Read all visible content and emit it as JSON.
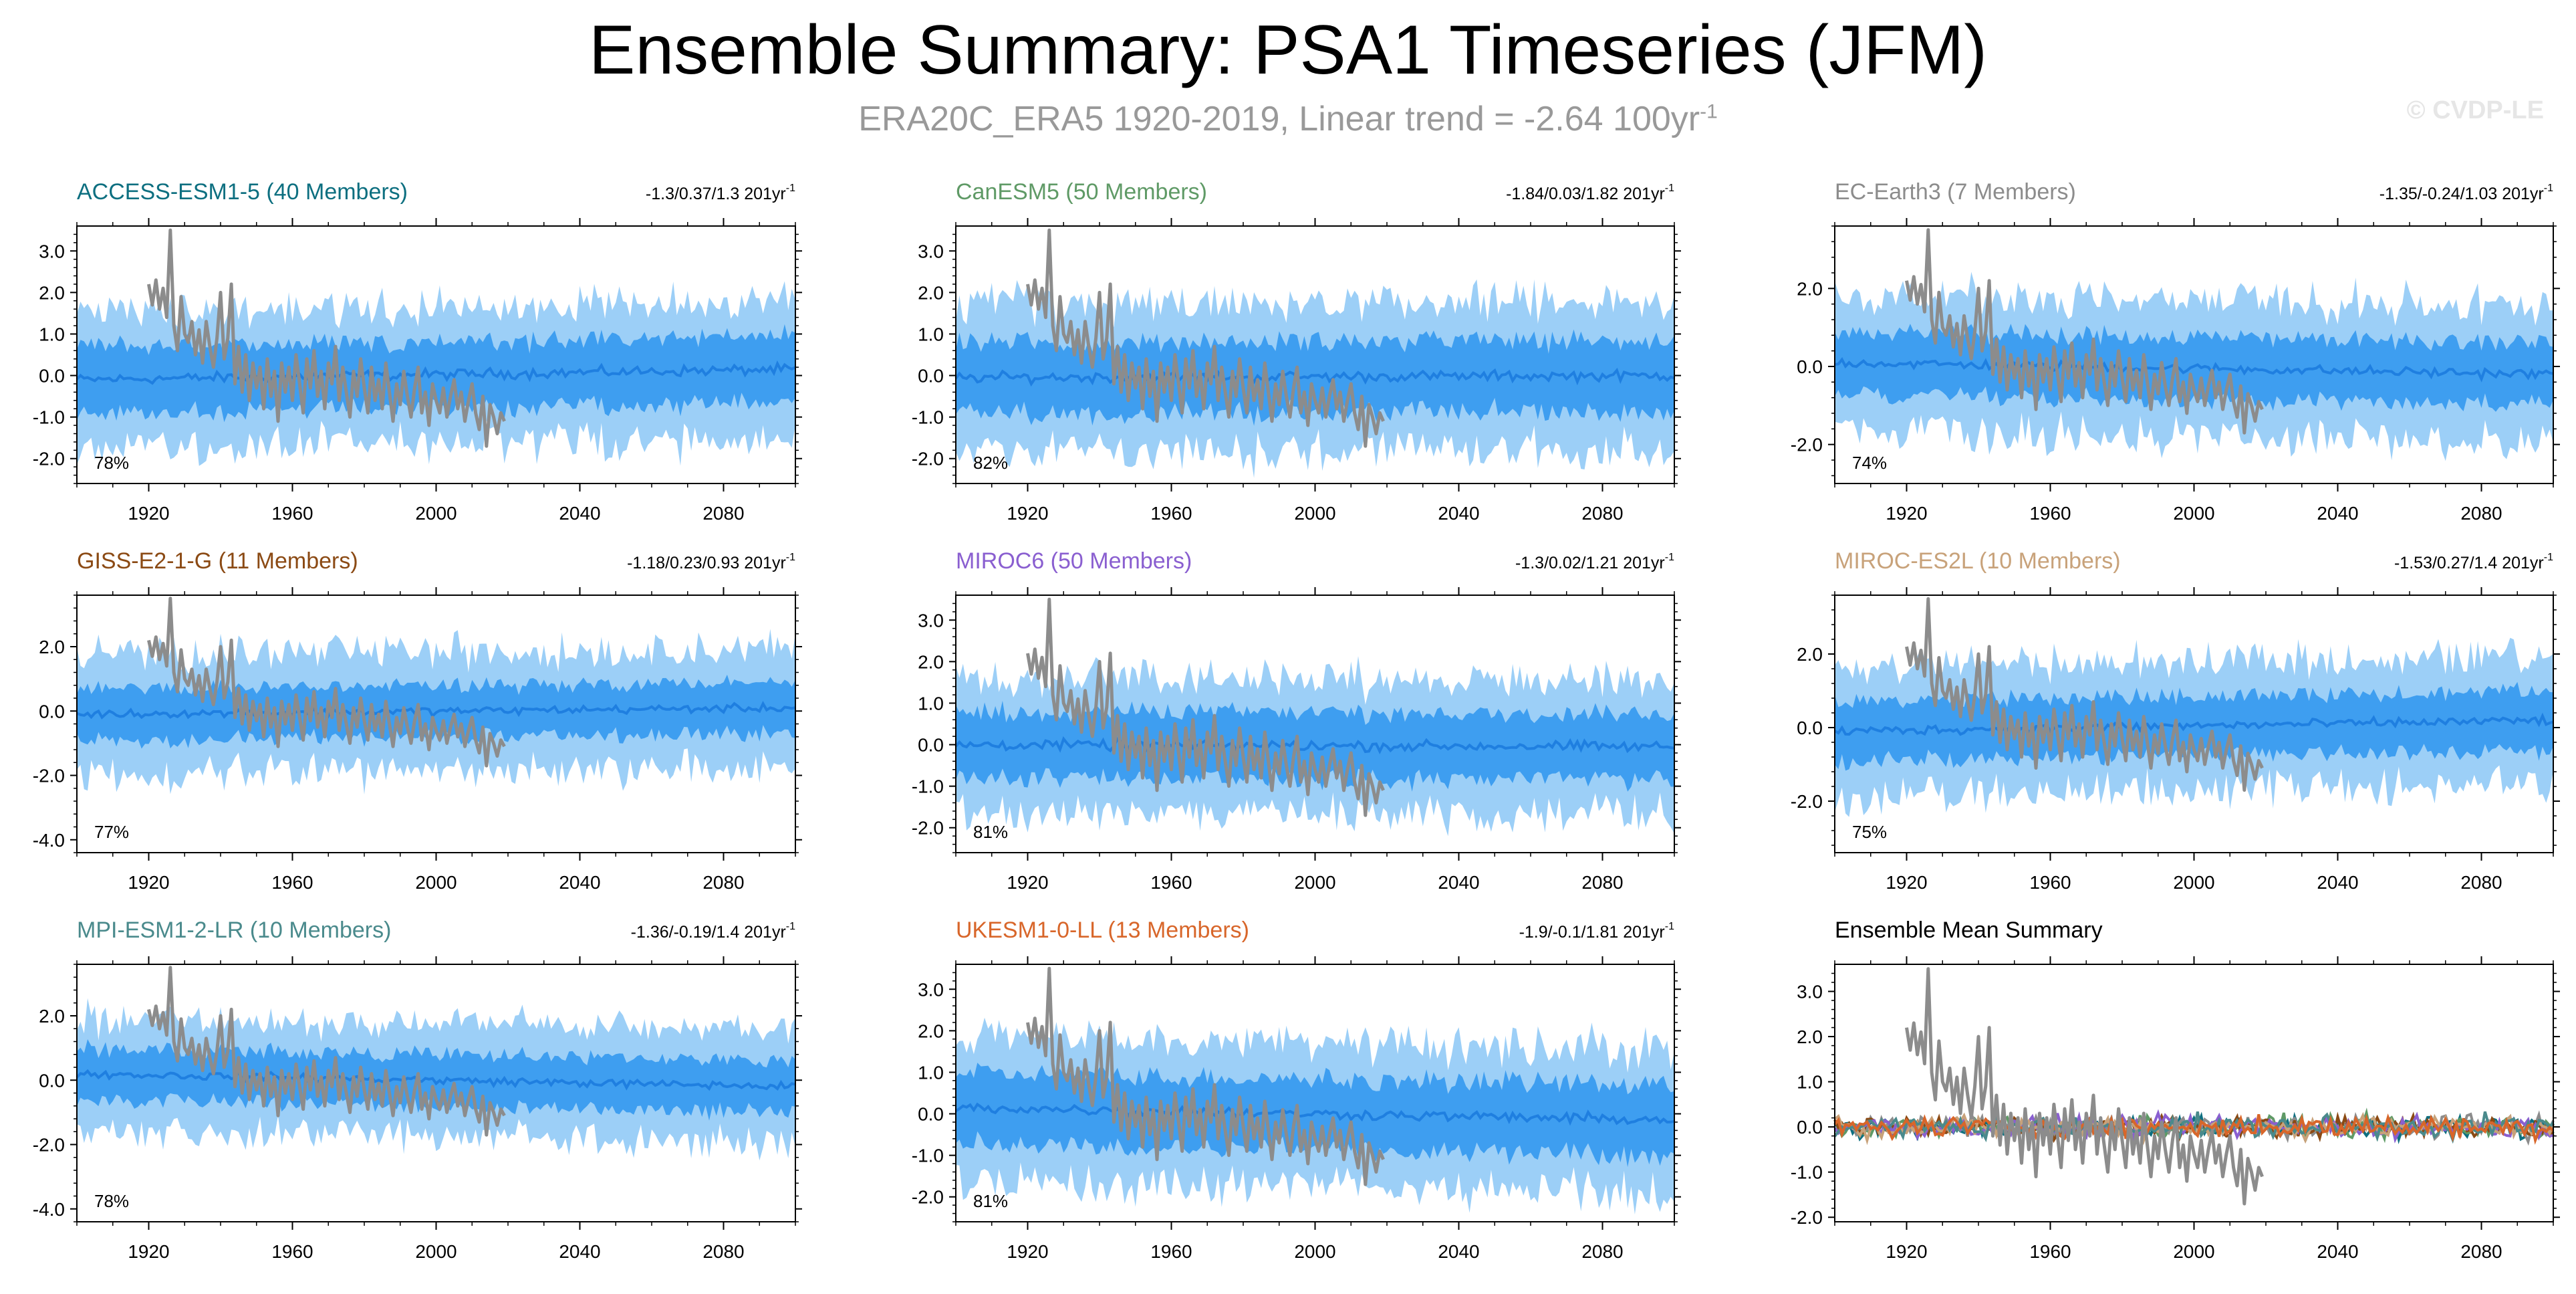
{
  "figure": {
    "title": "Ensemble Summary: PSA1 Timeseries (JFM)",
    "subtitle_main": "ERA20C_ERA5 1920-2019, Linear trend = -2.64 100yr",
    "subtitle_exp": "-1",
    "credit": "© CVDP-LE",
    "trend_unit": "201yr",
    "trend_exp": "-1",
    "obs_color": "#8c8c8c",
    "spread_outer_color": "#9ccff7",
    "spread_inner_color": "#3e9ef0",
    "ensmean_color": "#1f7fe0"
  },
  "chart_data": [
    {
      "type": "area",
      "model": "ACCESS-ESM1-5 (40 Members)",
      "name_color": "#0d6f80",
      "trend_range": "-1.3/0.37/1.3",
      "rank_percent": "78%",
      "x_range": [
        1900,
        2100
      ],
      "ylim": [
        -2.6,
        3.6
      ],
      "y_ticks": [
        "3.0",
        "2.0",
        "1.0",
        "0.0",
        "-1.0",
        "-2.0"
      ],
      "x_ticks": [
        "1920",
        "1960",
        "2000",
        "2040",
        "2080"
      ],
      "ensemble_mean_trend": [
        [
          1900,
          -0.1
        ],
        [
          2100,
          0.15
        ]
      ],
      "spread_10_90": 0.8,
      "spread_min_max": 1.6
    },
    {
      "type": "area",
      "model": "CanESM5 (50 Members)",
      "name_color": "#5f9a66",
      "trend_range": "-1.84/0.03/1.82",
      "rank_percent": "82%",
      "x_range": [
        1900,
        2100
      ],
      "ylim": [
        -2.6,
        3.6
      ],
      "y_ticks": [
        "3.0",
        "2.0",
        "1.0",
        "0.0",
        "-1.0",
        "-2.0"
      ],
      "x_ticks": [
        "1920",
        "1960",
        "2000",
        "2040",
        "2080"
      ],
      "ensemble_mean_trend": [
        [
          1900,
          -0.05
        ],
        [
          2100,
          0.0
        ]
      ],
      "spread_10_90": 0.85,
      "spread_min_max": 1.7
    },
    {
      "type": "area",
      "model": "EC-Earth3 (7 Members)",
      "name_color": "#8c8c8c",
      "trend_range": "-1.35/-0.24/1.03",
      "rank_percent": "74%",
      "x_range": [
        1900,
        2100
      ],
      "ylim": [
        -3.0,
        3.6
      ],
      "y_ticks": [
        "2.0",
        "0.0",
        "-2.0"
      ],
      "x_ticks": [
        "1920",
        "1960",
        "2000",
        "2040",
        "2080"
      ],
      "ensemble_mean_trend": [
        [
          1900,
          0.1
        ],
        [
          2100,
          -0.2
        ]
      ],
      "spread_10_90": 0.8,
      "spread_min_max": 1.7
    },
    {
      "type": "area",
      "model": "GISS-E2-1-G (11 Members)",
      "name_color": "#8b4a14",
      "trend_range": "-1.18/0.23/0.93",
      "rank_percent": "77%",
      "x_range": [
        1900,
        2100
      ],
      "ylim": [
        -4.4,
        3.6
      ],
      "y_ticks": [
        "2.0",
        "0.0",
        "-2.0",
        "-4.0"
      ],
      "x_ticks": [
        "1920",
        "1960",
        "2000",
        "2040",
        "2080"
      ],
      "ensemble_mean_trend": [
        [
          1900,
          -0.1
        ],
        [
          2100,
          0.1
        ]
      ],
      "spread_10_90": 0.8,
      "spread_min_max": 1.8
    },
    {
      "type": "area",
      "model": "MIROC6 (50 Members)",
      "name_color": "#8a5fd0",
      "trend_range": "-1.3/0.02/1.21",
      "rank_percent": "81%",
      "x_range": [
        1900,
        2100
      ],
      "ylim": [
        -2.6,
        3.6
      ],
      "y_ticks": [
        "3.0",
        "2.0",
        "1.0",
        "0.0",
        "-1.0",
        "-2.0"
      ],
      "x_ticks": [
        "1920",
        "1960",
        "2000",
        "2040",
        "2080"
      ],
      "ensemble_mean_trend": [
        [
          1900,
          0.0
        ],
        [
          2100,
          -0.05
        ]
      ],
      "spread_10_90": 0.8,
      "spread_min_max": 1.6
    },
    {
      "type": "area",
      "model": "MIROC-ES2L (10 Members)",
      "name_color": "#c8a27a",
      "trend_range": "-1.53/0.27/1.4",
      "rank_percent": "75%",
      "x_range": [
        1900,
        2100
      ],
      "ylim": [
        -3.4,
        3.6
      ],
      "y_ticks": [
        "2.0",
        "0.0",
        "-2.0"
      ],
      "x_ticks": [
        "1920",
        "1960",
        "2000",
        "2040",
        "2080"
      ],
      "ensemble_mean_trend": [
        [
          1900,
          -0.1
        ],
        [
          2100,
          0.2
        ]
      ],
      "spread_10_90": 0.8,
      "spread_min_max": 1.7
    },
    {
      "type": "area",
      "model": "MPI-ESM1-2-LR (10 Members)",
      "name_color": "#4a8a8c",
      "trend_range": "-1.36/-0.19/1.4",
      "rank_percent": "78%",
      "x_range": [
        1900,
        2100
      ],
      "ylim": [
        -4.4,
        3.6
      ],
      "y_ticks": [
        "2.0",
        "0.0",
        "-2.0",
        "-4.0"
      ],
      "x_ticks": [
        "1920",
        "1960",
        "2000",
        "2040",
        "2080"
      ],
      "ensemble_mean_trend": [
        [
          1900,
          0.2
        ],
        [
          2100,
          -0.2
        ]
      ],
      "spread_10_90": 0.8,
      "spread_min_max": 1.7
    },
    {
      "type": "area",
      "model": "UKESM1-0-LL (13 Members)",
      "name_color": "#d8662a",
      "trend_range": "-1.9/-0.1/1.81",
      "rank_percent": "81%",
      "x_range": [
        1900,
        2100
      ],
      "ylim": [
        -2.6,
        3.6
      ],
      "y_ticks": [
        "3.0",
        "2.0",
        "1.0",
        "0.0",
        "-1.0",
        "-2.0"
      ],
      "x_ticks": [
        "1920",
        "1960",
        "2000",
        "2040",
        "2080"
      ],
      "ensemble_mean_trend": [
        [
          1900,
          0.15
        ],
        [
          2100,
          -0.15
        ]
      ],
      "spread_10_90": 0.85,
      "spread_min_max": 1.7
    },
    {
      "type": "line",
      "model": "Ensemble Mean Summary",
      "name_color": "#000000",
      "trend_range": "",
      "rank_percent": "",
      "x_range": [
        1900,
        2100
      ],
      "ylim": [
        -2.1,
        3.6
      ],
      "y_ticks": [
        "3.0",
        "2.0",
        "1.0",
        "0.0",
        "-1.0",
        "-2.0"
      ],
      "x_ticks": [
        "1920",
        "1960",
        "2000",
        "2040",
        "2080"
      ],
      "series": [
        {
          "name": "ACCESS-ESM1-5",
          "color": "#0d6f80"
        },
        {
          "name": "CanESM5",
          "color": "#5f9a66"
        },
        {
          "name": "EC-Earth3",
          "color": "#8c8c8c"
        },
        {
          "name": "GISS-E2-1-G",
          "color": "#8b4a14"
        },
        {
          "name": "MIROC6",
          "color": "#8a5fd0"
        },
        {
          "name": "MIROC-ES2L",
          "color": "#c8a27a"
        },
        {
          "name": "MPI-ESM1-2-LR",
          "color": "#4a8a8c"
        },
        {
          "name": "UKESM1-0-LL",
          "color": "#d8662a"
        }
      ]
    }
  ],
  "observations": {
    "name": "ERA20C_ERA5",
    "years": [
      1920,
      2019
    ],
    "key_points": [
      [
        1920,
        2.2
      ],
      [
        1921,
        1.7
      ],
      [
        1922,
        2.3
      ],
      [
        1923,
        1.6
      ],
      [
        1924,
        2.1
      ],
      [
        1925,
        1.4
      ],
      [
        1926,
        3.5
      ],
      [
        1927,
        1.2
      ],
      [
        1928,
        0.6
      ],
      [
        1929,
        1.9
      ],
      [
        1930,
        1.0
      ],
      [
        1931,
        0.8
      ],
      [
        1932,
        1.3
      ],
      [
        1933,
        0.5
      ],
      [
        1934,
        1.1
      ],
      [
        1935,
        0.3
      ],
      [
        1936,
        1.3
      ],
      [
        1937,
        0.7
      ],
      [
        1938,
        0.2
      ],
      [
        1939,
        0.9
      ],
      [
        1940,
        2.0
      ],
      [
        1941,
        0.4
      ],
      [
        1942,
        0.9
      ],
      [
        1943,
        2.2
      ],
      [
        1944,
        -0.2
      ],
      [
        1945,
        0.7
      ],
      [
        1946,
        -0.4
      ],
      [
        1947,
        0.5
      ],
      [
        1948,
        -0.6
      ],
      [
        1949,
        0.3
      ],
      [
        1950,
        -0.3
      ],
      [
        1951,
        0.2
      ],
      [
        1952,
        -0.8
      ],
      [
        1953,
        0.4
      ],
      [
        1954,
        -0.5
      ],
      [
        1955,
        0.1
      ],
      [
        1956,
        -1.1
      ],
      [
        1957,
        0.3
      ],
      [
        1958,
        -0.4
      ],
      [
        1959,
        0.2
      ],
      [
        1960,
        -0.6
      ],
      [
        1961,
        0.5
      ],
      [
        1962,
        -0.2
      ],
      [
        1963,
        -0.9
      ],
      [
        1964,
        0.4
      ],
      [
        1965,
        -0.3
      ],
      [
        1966,
        0.6
      ],
      [
        1967,
        -0.5
      ],
      [
        1968,
        0.1
      ],
      [
        1969,
        -0.8
      ],
      [
        1970,
        0.3
      ],
      [
        1971,
        -0.2
      ],
      [
        1972,
        0.7
      ],
      [
        1973,
        -0.6
      ],
      [
        1974,
        0.2
      ],
      [
        1975,
        -0.4
      ],
      [
        1976,
        -1.0
      ],
      [
        1977,
        0.1
      ],
      [
        1978,
        -0.5
      ],
      [
        1979,
        0.4
      ],
      [
        1980,
        -0.3
      ],
      [
        1981,
        -0.9
      ],
      [
        1982,
        0.2
      ],
      [
        1983,
        -0.6
      ],
      [
        1984,
        -0.1
      ],
      [
        1985,
        -0.8
      ],
      [
        1986,
        0.3
      ],
      [
        1987,
        -0.4
      ],
      [
        1988,
        -1.1
      ],
      [
        1989,
        -0.2
      ],
      [
        1990,
        -0.7
      ],
      [
        1991,
        0.1
      ],
      [
        1992,
        -0.5
      ],
      [
        1993,
        -1.0
      ],
      [
        1994,
        -0.3
      ],
      [
        1995,
        0.2
      ],
      [
        1996,
        -0.9
      ],
      [
        1997,
        -0.4
      ],
      [
        1998,
        -1.2
      ],
      [
        1999,
        -0.2
      ],
      [
        2000,
        -0.6
      ],
      [
        2001,
        -0.9
      ],
      [
        2002,
        -0.3
      ],
      [
        2003,
        -1.0
      ],
      [
        2004,
        -0.5
      ],
      [
        2005,
        -0.1
      ],
      [
        2006,
        -0.8
      ],
      [
        2007,
        -0.4
      ],
      [
        2008,
        -1.1
      ],
      [
        2009,
        -0.6
      ],
      [
        2010,
        -0.2
      ],
      [
        2011,
        -0.9
      ],
      [
        2012,
        -1.3
      ],
      [
        2013,
        -0.5
      ],
      [
        2014,
        -1.7
      ],
      [
        2015,
        -0.7
      ],
      [
        2016,
        -1.0
      ],
      [
        2017,
        -1.4
      ],
      [
        2018,
        -0.9
      ],
      [
        2019,
        -1.1
      ]
    ]
  }
}
